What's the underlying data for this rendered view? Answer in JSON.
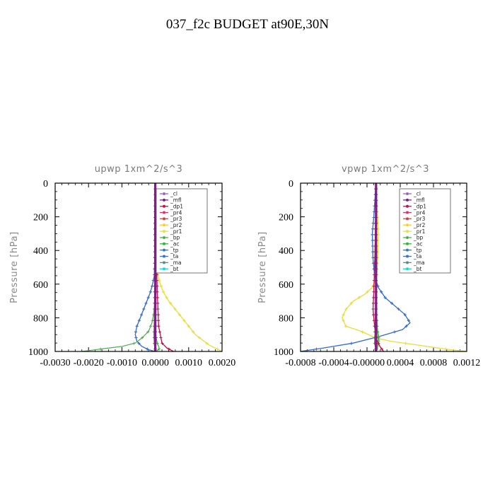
{
  "title": "037_f2c  BUDGET at90E,30N",
  "colors": {
    "_cl": "#9966cc",
    "_mfl": "#7a2080",
    "_dp1": "#c8104e",
    "_pr4": "#e0306a",
    "_pr3": "#dd3c3c",
    "_pr2": "#ffcc33",
    "_pr1": "#e8e040",
    "_bp": "#4caf50",
    "_ac": "#2eb82e",
    "_tp": "#2a7fc0",
    "_ta": "#3c6ed0",
    "_ma": "#5c8a8a",
    "_bt": "#00e0e8"
  },
  "chart_data": [
    {
      "type": "line",
      "title": "upwp   1xm^2/s^3",
      "ylabel": "Pressure [hPa]",
      "xlabel": "",
      "xlim": [
        -0.003,
        0.002
      ],
      "ylim": [
        1000,
        0
      ],
      "xticks": [
        "-0.0030",
        "-0.0020",
        "-0.0010",
        "0.0000",
        "0.0010",
        "0.0020"
      ],
      "yticks": [
        "0",
        "200",
        "400",
        "600",
        "800",
        "1000"
      ],
      "legend_position": "top-right",
      "legend": [
        "_cl",
        "_mfl",
        "_dp1",
        "_pr4",
        "_pr3",
        "_pr2",
        "_pr1",
        "_bp",
        "_ac",
        "_tp",
        "_ta",
        "_ma",
        "_bt"
      ],
      "series": [
        {
          "name": "_pr2",
          "x": [
            0,
            1e-05,
            3e-05,
            8e-05,
            0.00015,
            0.00025,
            0.0004,
            0.0006,
            0.0008,
            0.001,
            0.0012,
            0.0016,
            0.002
          ],
          "y": [
            0,
            200,
            400,
            550,
            600,
            650,
            700,
            750,
            800,
            850,
            900,
            960,
            1000
          ]
        },
        {
          "name": "_pr1",
          "x": [
            0,
            1e-05,
            3e-05,
            8e-05,
            0.00015,
            0.00025,
            0.0004,
            0.0006,
            0.0008,
            0.001,
            0.0012,
            0.0016,
            0.002
          ],
          "y": [
            0,
            200,
            400,
            550,
            600,
            650,
            700,
            750,
            800,
            850,
            900,
            960,
            1000
          ]
        },
        {
          "name": "_tp",
          "x": [
            0,
            -1e-05,
            -3e-05,
            -8e-05,
            -0.00015,
            -0.00025,
            -0.00035,
            -0.00045,
            -0.00055,
            -0.0006,
            -0.00055,
            -0.0004,
            -0.0002,
            0
          ],
          "y": [
            0,
            400,
            550,
            600,
            650,
            700,
            750,
            800,
            850,
            900,
            940,
            970,
            990,
            1000
          ]
        },
        {
          "name": "_ta",
          "x": [
            0,
            -1e-05,
            -3e-05,
            -8e-05,
            -0.00015,
            -0.00025,
            -0.00035,
            -0.00045,
            -0.00055,
            -0.0006,
            -0.00055,
            -0.0004,
            -0.0002,
            0
          ],
          "y": [
            0,
            400,
            550,
            600,
            650,
            700,
            750,
            800,
            850,
            900,
            940,
            970,
            990,
            1000
          ]
        },
        {
          "name": "_bp",
          "x": [
            0,
            -1e-05,
            -5e-05,
            -0.0001,
            -0.0002,
            -0.0004,
            -0.0006,
            -0.001,
            -0.0016,
            -0.0022
          ],
          "y": [
            0,
            700,
            780,
            830,
            880,
            920,
            950,
            970,
            985,
            1000
          ]
        },
        {
          "name": "_ac",
          "x": [
            0,
            0,
            1e-05,
            3e-05,
            6e-05,
            0.0001,
            0.00012,
            5e-05,
            0
          ],
          "y": [
            0,
            800,
            880,
            920,
            950,
            970,
            985,
            995,
            1000
          ]
        },
        {
          "name": "_dp1",
          "x": [
            0,
            2e-05,
            4e-05,
            6e-05,
            8e-05,
            0.0001,
            0.00015,
            0.0002,
            0.00035,
            0.00055
          ],
          "y": [
            0,
            300,
            500,
            650,
            750,
            850,
            900,
            950,
            980,
            1000
          ]
        },
        {
          "name": "_pr4",
          "x": [
            0,
            2e-05,
            4e-05,
            6e-05,
            8e-05,
            0.0001,
            0.00015,
            0.0002,
            0.00035,
            0.00055
          ],
          "y": [
            0,
            300,
            500,
            650,
            750,
            850,
            900,
            950,
            980,
            1000
          ]
        },
        {
          "name": "_pr3",
          "x": [
            0,
            -1e-05,
            -2e-05,
            -3e-05,
            -4e-05,
            -3e-05,
            0
          ],
          "y": [
            0,
            400,
            600,
            800,
            900,
            960,
            1000
          ]
        },
        {
          "name": "_cl",
          "x": [
            0,
            0,
            0,
            0
          ],
          "y": [
            0,
            300,
            700,
            1000
          ]
        },
        {
          "name": "_mfl",
          "x": [
            0,
            0,
            0,
            0
          ],
          "y": [
            0,
            300,
            700,
            1000
          ]
        },
        {
          "name": "_ma",
          "x": [
            0,
            0,
            0,
            0
          ],
          "y": [
            0,
            300,
            700,
            1000
          ]
        },
        {
          "name": "_bt",
          "x": [
            0,
            0,
            0,
            0
          ],
          "y": [
            0,
            300,
            700,
            1000
          ]
        }
      ]
    },
    {
      "type": "line",
      "title": "vpwp   1xm^2/s^3",
      "ylabel": "Pressure [hPa]",
      "xlabel": "",
      "xlim": [
        -0.001,
        0.0012
      ],
      "ylim": [
        1000,
        0
      ],
      "xticks": [
        "-0.0008",
        "-0.0004",
        "-0.00000",
        "0.0004",
        "0.0008",
        "0.0012"
      ],
      "yticks": [
        "0",
        "200",
        "400",
        "600",
        "800",
        "1000"
      ],
      "legend_position": "top-right",
      "legend": [
        "_cl",
        "_mfl",
        "_dp1",
        "_pr4",
        "_pr3",
        "_pr2",
        "_pr1",
        "_bp",
        "_ac",
        "_tp",
        "_ta",
        "_ma",
        "_bt"
      ],
      "series": [
        {
          "name": "_pr2",
          "x": [
            0,
            2e-05,
            3e-05,
            2e-05,
            1e-05,
            -5e-05,
            -0.00015,
            -0.0003,
            -0.0004,
            -0.00045,
            -0.0004,
            -0.0002,
            0,
            0.0002,
            0.0006,
            0.0009,
            0.0012
          ],
          "y": [
            0,
            200,
            300,
            450,
            550,
            620,
            660,
            700,
            750,
            800,
            850,
            880,
            920,
            940,
            965,
            985,
            1000
          ]
        },
        {
          "name": "_pr1",
          "x": [
            0,
            2e-05,
            3e-05,
            2e-05,
            1e-05,
            -5e-05,
            -0.00015,
            -0.0003,
            -0.0004,
            -0.00045,
            -0.0004,
            -0.0002,
            0,
            0.0002,
            0.0006,
            0.0009,
            0.0012
          ],
          "y": [
            0,
            200,
            300,
            450,
            550,
            620,
            660,
            700,
            750,
            800,
            850,
            880,
            920,
            940,
            965,
            985,
            1000
          ]
        },
        {
          "name": "_tp",
          "x": [
            0,
            -3e-05,
            -5e-05,
            -4e-05,
            -2e-05,
            3e-05,
            0.00012,
            0.00025,
            0.00038,
            0.00045,
            0.00035,
            5e-05,
            -0.0003,
            -0.0007,
            -0.001
          ],
          "y": [
            0,
            200,
            300,
            450,
            550,
            620,
            680,
            730,
            780,
            830,
            870,
            910,
            950,
            980,
            1000
          ]
        },
        {
          "name": "_ta",
          "x": [
            0,
            -3e-05,
            -5e-05,
            -4e-05,
            -2e-05,
            3e-05,
            0.00012,
            0.00025,
            0.00038,
            0.00045,
            0.00035,
            5e-05,
            -0.0003,
            -0.0007,
            -0.001
          ],
          "y": [
            0,
            200,
            300,
            450,
            550,
            620,
            680,
            730,
            780,
            830,
            870,
            910,
            950,
            980,
            1000
          ]
        },
        {
          "name": "_bp",
          "x": [
            0,
            0,
            1e-05,
            2e-05,
            3e-05,
            1e-05,
            0
          ],
          "y": [
            0,
            700,
            800,
            880,
            930,
            970,
            1000
          ]
        },
        {
          "name": "_ac",
          "x": [
            0,
            0,
            1e-05,
            3e-05,
            4e-05,
            2e-05,
            0
          ],
          "y": [
            0,
            750,
            850,
            900,
            940,
            975,
            1000
          ]
        },
        {
          "name": "_dp1",
          "x": [
            0,
            -1e-05,
            -2e-05,
            -3e-05,
            -4e-05,
            -2e-05,
            0,
            5e-05,
            0.0001
          ],
          "y": [
            0,
            300,
            500,
            650,
            750,
            850,
            920,
            970,
            1000
          ]
        },
        {
          "name": "_pr4",
          "x": [
            0,
            -1e-05,
            -2e-05,
            -3e-05,
            -4e-05,
            -2e-05,
            0,
            5e-05,
            0.0001
          ],
          "y": [
            0,
            300,
            500,
            650,
            750,
            850,
            920,
            970,
            1000
          ]
        },
        {
          "name": "_pr3",
          "x": [
            0,
            0,
            -1e-05,
            -2e-05,
            0
          ],
          "y": [
            0,
            500,
            800,
            950,
            1000
          ]
        },
        {
          "name": "_cl",
          "x": [
            0,
            0,
            0,
            0
          ],
          "y": [
            0,
            300,
            700,
            1000
          ]
        },
        {
          "name": "_mfl",
          "x": [
            0,
            0,
            0,
            0
          ],
          "y": [
            0,
            300,
            700,
            1000
          ]
        },
        {
          "name": "_ma",
          "x": [
            0,
            0,
            0,
            0
          ],
          "y": [
            0,
            300,
            700,
            1000
          ]
        },
        {
          "name": "_bt",
          "x": [
            0,
            0,
            0,
            0
          ],
          "y": [
            0,
            300,
            700,
            1000
          ]
        }
      ]
    }
  ]
}
